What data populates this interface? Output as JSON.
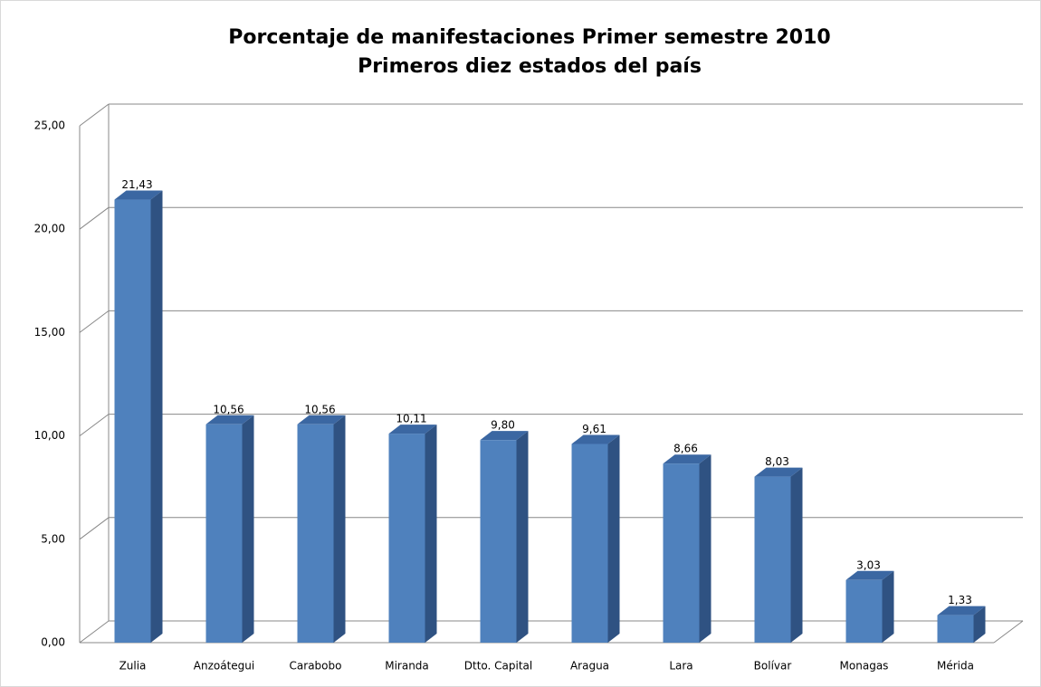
{
  "chart_data": {
    "type": "bar",
    "title": "Porcentaje de manifestaciones  Primer semestre 2010",
    "subtitle": "Primeros diez estados del país",
    "categories": [
      "Zulia",
      "Anzoátegui",
      "Carabobo",
      "Miranda",
      "Dtto. Capital",
      "Aragua",
      "Lara",
      "Bolívar",
      "Monagas",
      "Mérida"
    ],
    "values": [
      21.43,
      10.56,
      10.56,
      10.11,
      9.8,
      9.61,
      8.66,
      8.03,
      3.03,
      1.33
    ],
    "value_labels": [
      "21,43",
      "10,56",
      "10,56",
      "10,11",
      "9,80",
      "9,61",
      "8,66",
      "8,03",
      "3,03",
      "1,33"
    ],
    "color": "#4f81bd",
    "ylim": [
      0,
      25
    ],
    "yticks": [
      {
        "value": 0,
        "label": "0,00"
      },
      {
        "value": 5,
        "label": "5,00"
      },
      {
        "value": 10,
        "label": "10,00"
      },
      {
        "value": 15,
        "label": "15,00"
      },
      {
        "value": 20,
        "label": "20,00"
      },
      {
        "value": 25,
        "label": "25,00"
      }
    ],
    "grid": true
  }
}
